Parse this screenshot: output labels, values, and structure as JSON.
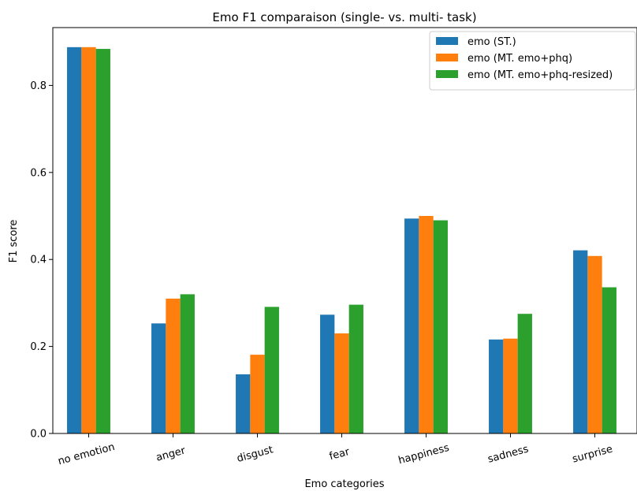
{
  "chart_data": {
    "type": "bar",
    "title": "Emo F1 comparaison (single- vs. multi- task)",
    "xlabel": "Emo categories",
    "ylabel": "F1 score",
    "categories": [
      "no emotion",
      "anger",
      "disgust",
      "fear",
      "happiness",
      "sadness",
      "surprise"
    ],
    "series": [
      {
        "name": "emo (ST.)",
        "color": "#1f77b4",
        "values": [
          0.888,
          0.253,
          0.136,
          0.273,
          0.494,
          0.216,
          0.421
        ]
      },
      {
        "name": "emo (MT. emo+phq)",
        "color": "#ff7f0e",
        "values": [
          0.888,
          0.31,
          0.181,
          0.23,
          0.5,
          0.218,
          0.408
        ]
      },
      {
        "name": "emo (MT. emo+phq-resized)",
        "color": "#2ca02c",
        "values": [
          0.884,
          0.32,
          0.291,
          0.296,
          0.49,
          0.275,
          0.336
        ]
      }
    ],
    "yticks": [
      "0.0",
      "0.2",
      "0.4",
      "0.6",
      "0.8"
    ],
    "ylim": [
      0,
      0.933
    ],
    "grid": false,
    "legend_position": "top-right"
  }
}
